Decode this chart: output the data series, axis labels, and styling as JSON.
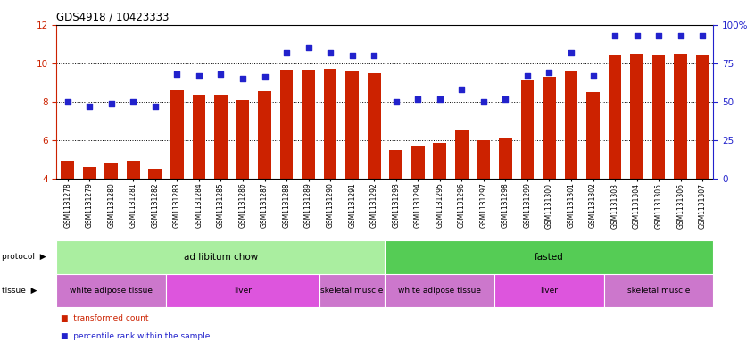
{
  "title": "GDS4918 / 10423333",
  "samples": [
    "GSM1131278",
    "GSM1131279",
    "GSM1131280",
    "GSM1131281",
    "GSM1131282",
    "GSM1131283",
    "GSM1131284",
    "GSM1131285",
    "GSM1131286",
    "GSM1131287",
    "GSM1131288",
    "GSM1131289",
    "GSM1131290",
    "GSM1131291",
    "GSM1131292",
    "GSM1131293",
    "GSM1131294",
    "GSM1131295",
    "GSM1131296",
    "GSM1131297",
    "GSM1131298",
    "GSM1131299",
    "GSM1131300",
    "GSM1131301",
    "GSM1131302",
    "GSM1131303",
    "GSM1131304",
    "GSM1131305",
    "GSM1131306",
    "GSM1131307"
  ],
  "bar_values": [
    4.95,
    4.6,
    4.8,
    4.95,
    4.55,
    8.6,
    8.35,
    8.35,
    8.1,
    8.55,
    9.65,
    9.65,
    9.7,
    9.55,
    9.5,
    5.5,
    5.7,
    5.85,
    6.5,
    6.0,
    6.1,
    9.1,
    9.3,
    9.6,
    8.5,
    10.4,
    10.45,
    10.4,
    10.45,
    10.4
  ],
  "dot_values_pct": [
    50,
    47,
    49,
    50,
    47,
    68,
    67,
    68,
    65,
    66,
    82,
    85,
    82,
    80,
    80,
    50,
    52,
    52,
    58,
    50,
    52,
    67,
    69,
    82,
    67,
    93,
    93,
    93,
    93,
    93
  ],
  "ylim_left": [
    4,
    12
  ],
  "ylim_right": [
    0,
    100
  ],
  "yticks_left": [
    4,
    6,
    8,
    10,
    12
  ],
  "yticks_right": [
    0,
    25,
    50,
    75,
    100
  ],
  "bar_color": "#cc2200",
  "dot_color": "#2222cc",
  "protocol_groups": [
    {
      "label": "ad libitum chow",
      "start": 0,
      "end": 14,
      "color": "#aaeea0"
    },
    {
      "label": "fasted",
      "start": 15,
      "end": 29,
      "color": "#55cc55"
    }
  ],
  "tissue_groups": [
    {
      "label": "white adipose tissue",
      "start": 0,
      "end": 4,
      "color": "#cc77cc"
    },
    {
      "label": "liver",
      "start": 5,
      "end": 11,
      "color": "#dd55dd"
    },
    {
      "label": "skeletal muscle",
      "start": 12,
      "end": 14,
      "color": "#cc77cc"
    },
    {
      "label": "white adipose tissue",
      "start": 15,
      "end": 19,
      "color": "#cc77cc"
    },
    {
      "label": "liver",
      "start": 20,
      "end": 24,
      "color": "#dd55dd"
    },
    {
      "label": "skeletal muscle",
      "start": 25,
      "end": 29,
      "color": "#cc77cc"
    }
  ]
}
